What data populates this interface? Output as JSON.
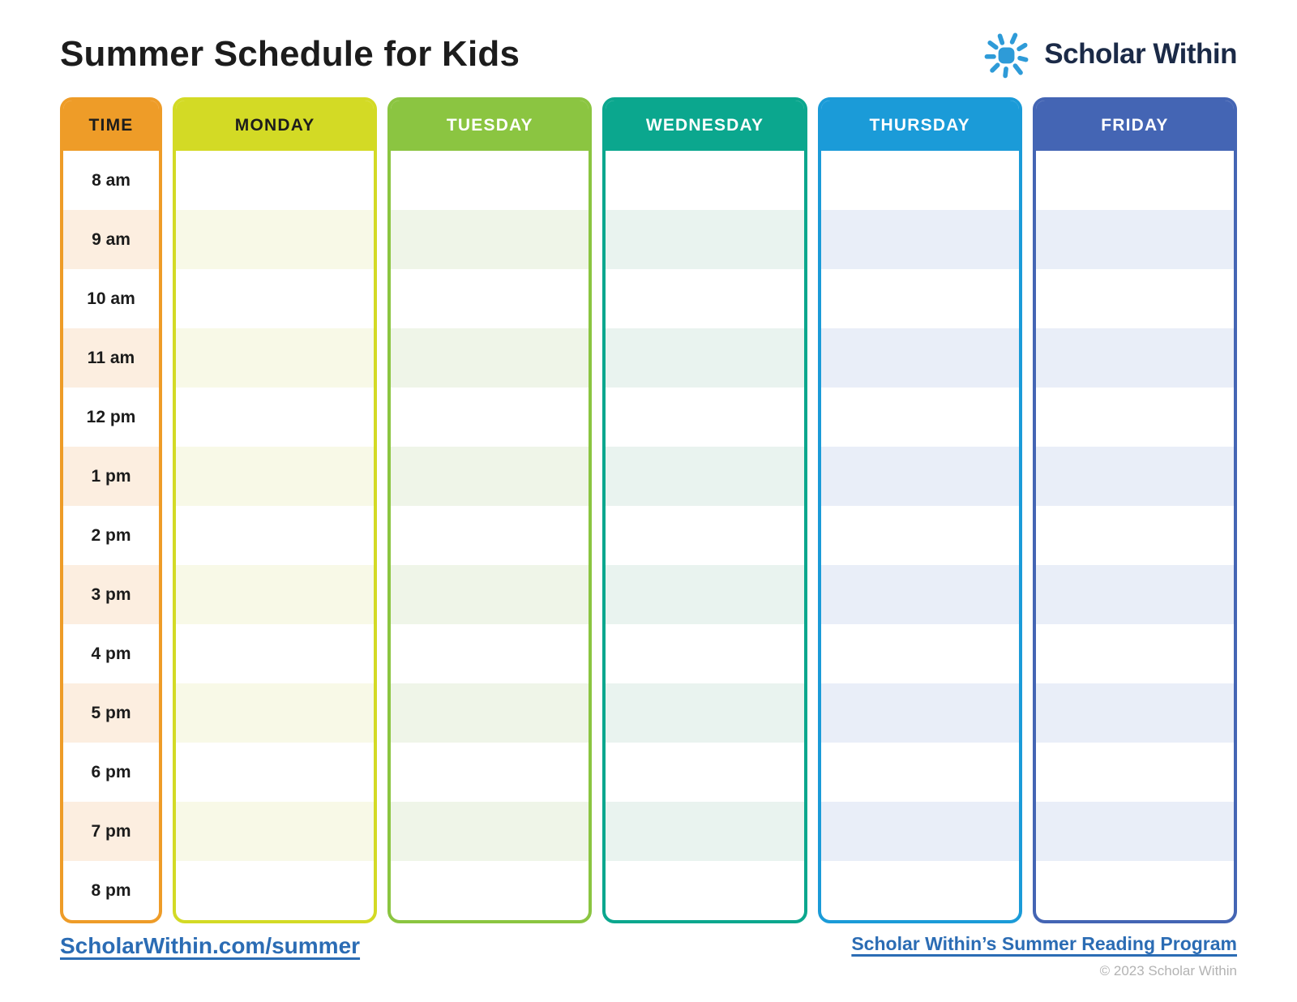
{
  "page": {
    "title": "Summer Schedule for Kids"
  },
  "logo": {
    "brand": "Scholar Within",
    "icon": "sun-icon",
    "sun_color": "#2E9BD8",
    "text_color": "#1B2A47"
  },
  "schedule": {
    "time_column": {
      "header": "TIME",
      "color": "#EE9C28",
      "stripe": "#FCEEE0",
      "header_text_color": "#1C1C1C",
      "times": [
        "8 am",
        "9 am",
        "10 am",
        "11 am",
        "12 pm",
        "1 pm",
        "2 pm",
        "3 pm",
        "4 pm",
        "5 pm",
        "6 pm",
        "7 pm",
        "8 pm"
      ]
    },
    "day_columns": [
      {
        "label": "MONDAY",
        "color": "#D3DA25",
        "stripe": "#F8F9E7",
        "header_text_color": "#1C1C1C"
      },
      {
        "label": "TUESDAY",
        "color": "#8BC541",
        "stripe": "#EFF5E8",
        "header_text_color": "#FFFFFF"
      },
      {
        "label": "WEDNESDAY",
        "color": "#0BA78E",
        "stripe": "#E9F3EF",
        "header_text_color": "#FFFFFF"
      },
      {
        "label": "THURSDAY",
        "color": "#1B9BD8",
        "stripe": "#E9EEF8",
        "header_text_color": "#FFFFFF"
      },
      {
        "label": "FRIDAY",
        "color": "#4465B4",
        "stripe": "#E9EEF8",
        "header_text_color": "#FFFFFF"
      }
    ]
  },
  "footer": {
    "left_link": "ScholarWithin.com/summer",
    "right_link": "Scholar Within’s Summer Reading Program",
    "copyright": "© 2023 Scholar Within",
    "link_color": "#2B6CB4",
    "copyright_color": "#B3B3B3"
  }
}
